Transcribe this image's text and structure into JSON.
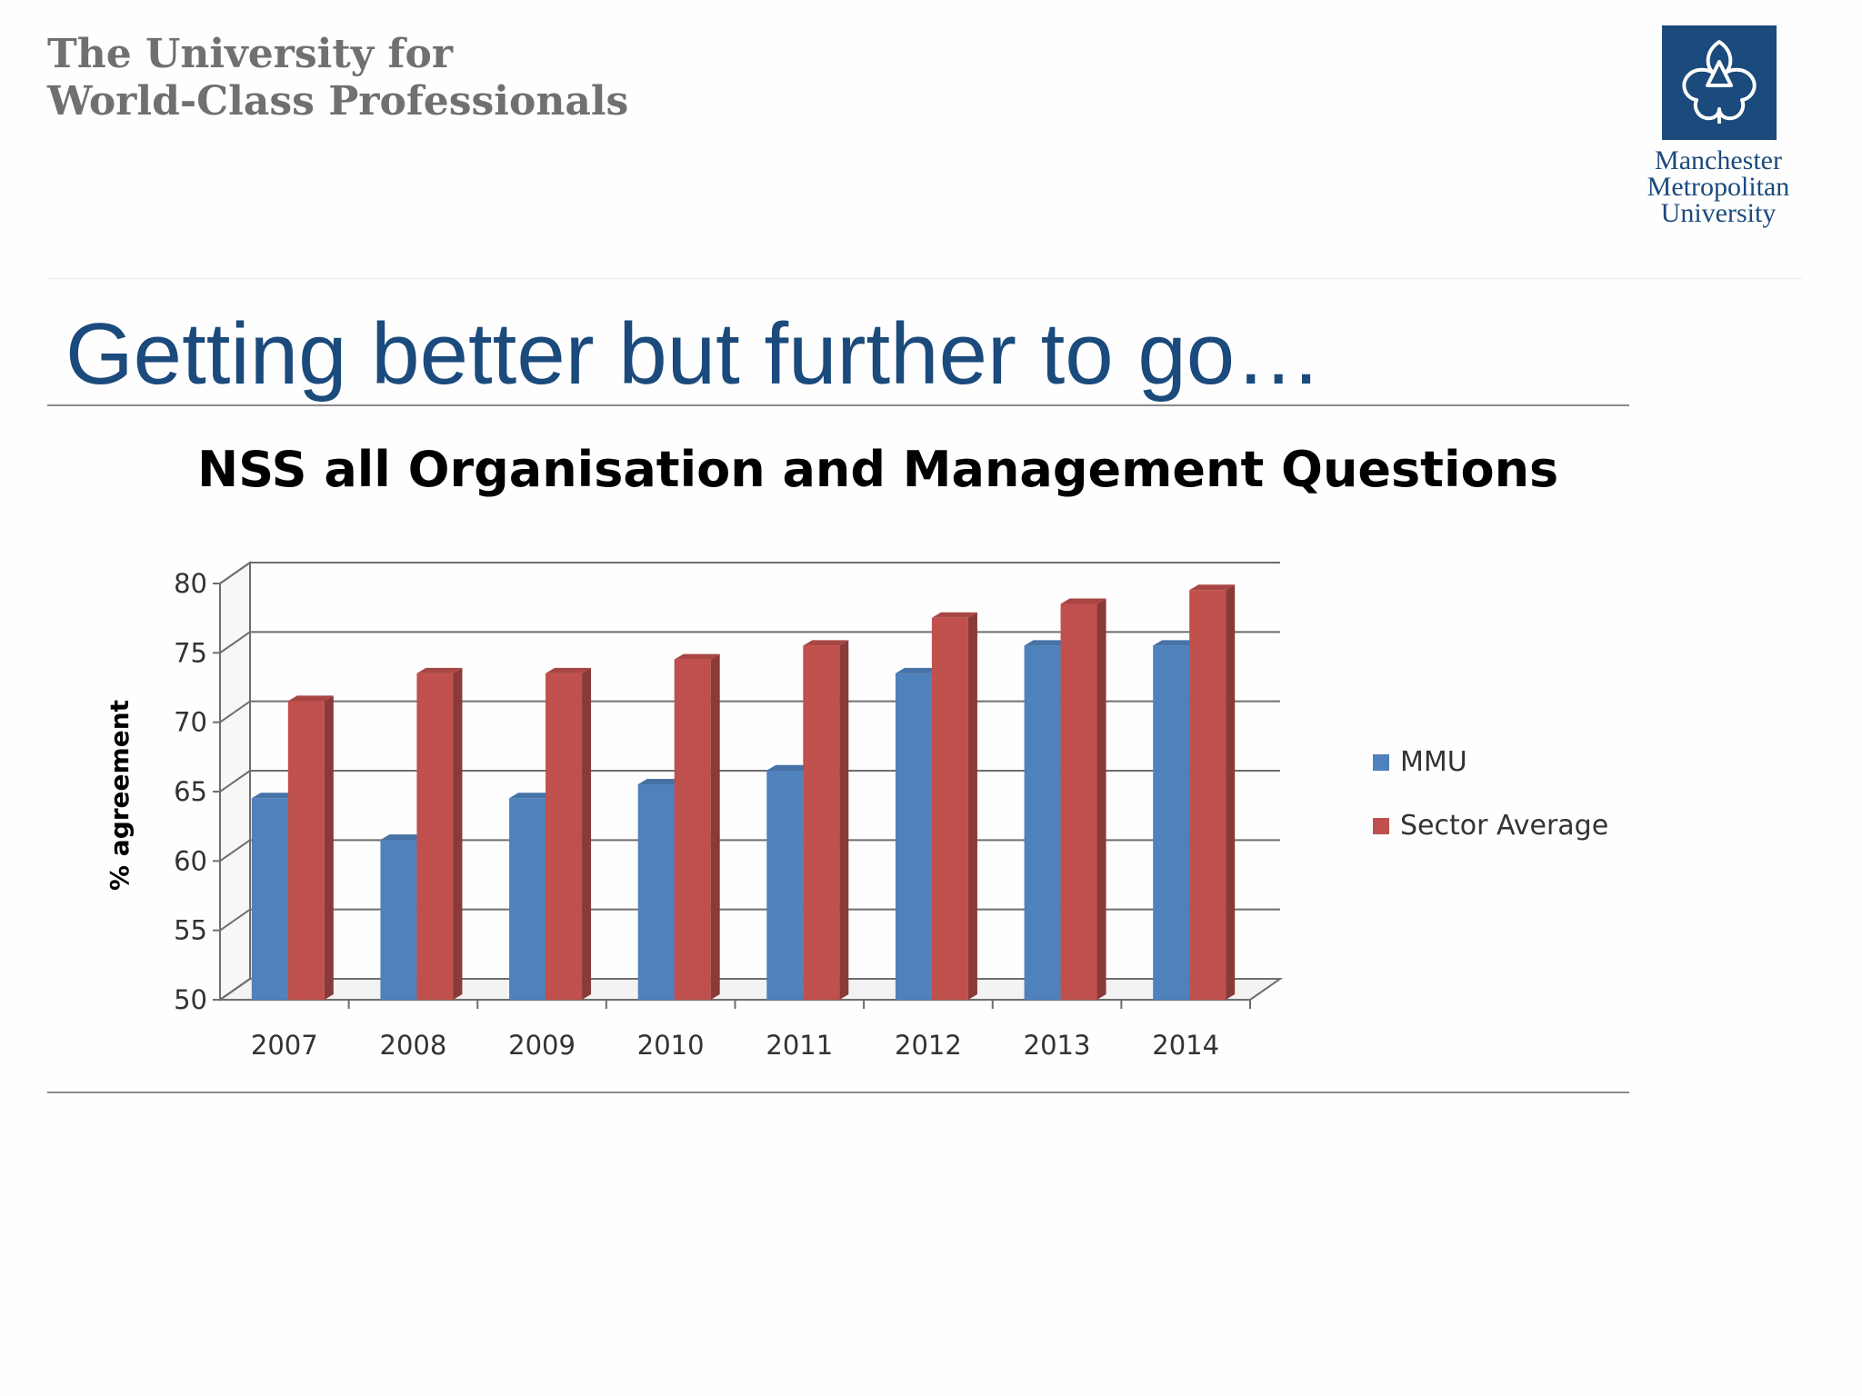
{
  "header": {
    "tagline_line1": "The University for",
    "tagline_line2": "World-Class Professionals",
    "logo_line1": "Manchester",
    "logo_line2": "Metropolitan",
    "logo_line3": "University",
    "brand_color": "#1b4a7c"
  },
  "slide": {
    "title": "Getting better but further to go…"
  },
  "chart_data": {
    "type": "bar",
    "title": "NSS all Organisation and Management Questions",
    "xlabel": "",
    "ylabel": "% agreement",
    "categories": [
      "2007",
      "2008",
      "2009",
      "2010",
      "2011",
      "2012",
      "2013",
      "2014"
    ],
    "series": [
      {
        "name": "MMU",
        "values": [
          64,
          61,
          64,
          65,
          66,
          73,
          75,
          75
        ],
        "color": "#4f81bd"
      },
      {
        "name": "Sector Average",
        "values": [
          71,
          73,
          73,
          74,
          75,
          77,
          78,
          79
        ],
        "color": "#c0504d"
      }
    ],
    "ylim": [
      50,
      80
    ],
    "yticks": [
      50,
      55,
      60,
      65,
      70,
      75,
      80
    ],
    "grid": true,
    "legend_position": "right",
    "style": "3d-clustered-column"
  }
}
